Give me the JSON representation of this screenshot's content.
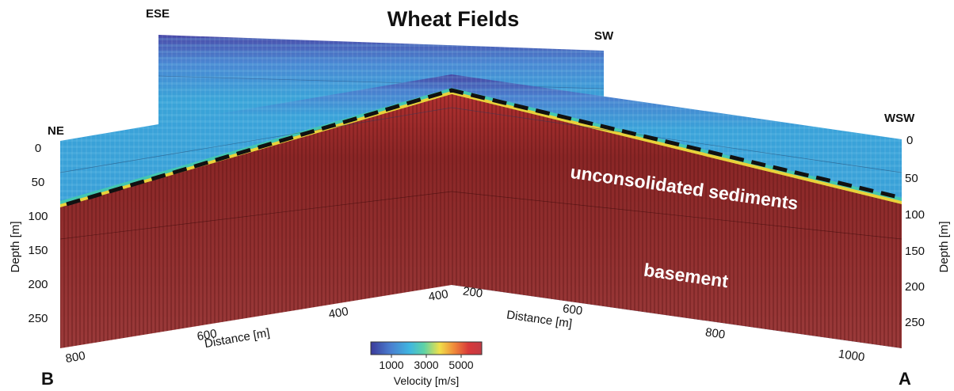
{
  "title": "Wheat Fields",
  "directions": {
    "ese": "ESE",
    "sw": "SW",
    "ne": "NE",
    "wsw": "WSW"
  },
  "corners": {
    "b": "B",
    "a": "A"
  },
  "depth_axis": {
    "label": "Depth [m]",
    "ticks": [
      "0",
      "50",
      "100",
      "150",
      "200",
      "250"
    ]
  },
  "distance_left": {
    "label": "Distance [m]",
    "ticks": [
      "800",
      "600",
      "400",
      "400"
    ]
  },
  "distance_right": {
    "label": "Distance [m]",
    "ticks": [
      "200",
      "600",
      "800",
      "1000"
    ]
  },
  "layers": {
    "upper": "unconsolidated sediments",
    "lower": "basement"
  },
  "colorbar": {
    "label": "Velocity [m/s]",
    "ticks": [
      "1000",
      "3000",
      "5000"
    ],
    "colors": [
      "#3b3a9a",
      "#4a7fd0",
      "#3fb6e0",
      "#5ed3a6",
      "#f0e04a",
      "#f08a3a",
      "#d8393a",
      "#8a1c1c"
    ]
  },
  "colors": {
    "sediment": "#3a9fd8",
    "sediment_light": "#5fc0e6",
    "surface": "#4a4aa8",
    "basement": "#8a2a2a",
    "interface_yellow": "#e8d23a",
    "dash": "#111111"
  }
}
